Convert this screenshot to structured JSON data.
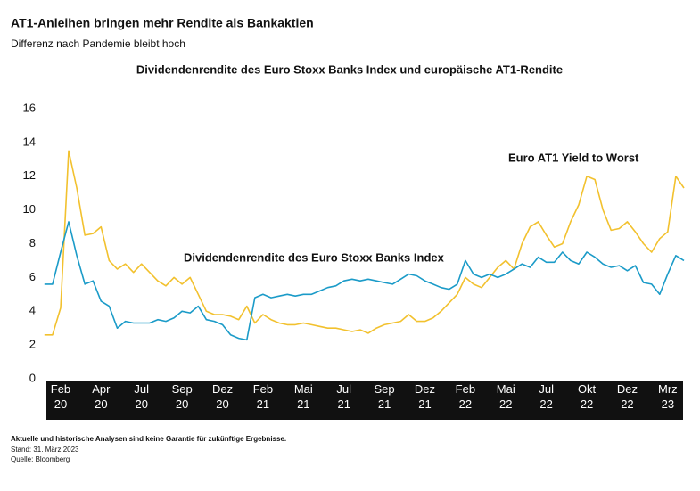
{
  "chart_data": {
    "type": "line",
    "title": "AT1-Anleihen bringen mehr Rendite als Bankaktien",
    "subtitle": "Differenz nach Pandemie bleibt hoch",
    "chart_title": "Dividendenrendite des Euro Stoxx Banks Index und europäische AT1-Rendite",
    "footnote": "Aktuelle und historische Analysen sind keine Garantie für zukünftige Ergebnisse.",
    "date_note": "Stand: 31. März 2023",
    "source": "Quelle: Bloomberg",
    "categories": [
      null,
      null,
      "Feb 20",
      null,
      null,
      null,
      null,
      "Apr 20",
      null,
      null,
      null,
      null,
      "Jul 20",
      null,
      null,
      null,
      null,
      "Sep 20",
      null,
      null,
      null,
      null,
      "Dez 20",
      null,
      null,
      null,
      null,
      "Feb 21",
      null,
      null,
      null,
      null,
      "Mai 21",
      null,
      null,
      null,
      null,
      "Jul 21",
      null,
      null,
      null,
      null,
      "Sep 21",
      null,
      null,
      null,
      null,
      "Dez 21",
      null,
      null,
      null,
      null,
      "Feb 22",
      null,
      null,
      null,
      null,
      "Mai 22",
      null,
      null,
      null,
      null,
      "Jul 22",
      null,
      null,
      null,
      null,
      "Okt 22",
      null,
      null,
      null,
      null,
      "Dez 22",
      null,
      null,
      null,
      null,
      "Mrz 23",
      null,
      null
    ],
    "series": [
      {
        "name": "Euro AT1 Yield to Worst",
        "color": "#f2c12e",
        "values": [
          2.6,
          2.6,
          4.2,
          13.5,
          11.3,
          8.5,
          8.6,
          9.0,
          7.0,
          6.5,
          6.8,
          6.3,
          6.8,
          6.3,
          5.8,
          5.5,
          6.0,
          5.6,
          6.0,
          5.0,
          4.0,
          3.8,
          3.8,
          3.7,
          3.5,
          4.3,
          3.3,
          3.8,
          3.5,
          3.3,
          3.2,
          3.2,
          3.3,
          3.2,
          3.1,
          3.0,
          3.0,
          2.9,
          2.8,
          2.9,
          2.7,
          3.0,
          3.2,
          3.3,
          3.4,
          3.8,
          3.4,
          3.4,
          3.6,
          4.0,
          4.5,
          5.0,
          6.0,
          5.6,
          5.4,
          6.0,
          6.6,
          7.0,
          6.5,
          8.0,
          9.0,
          9.3,
          8.5,
          7.8,
          8.0,
          9.3,
          10.3,
          12.0,
          11.8,
          10.0,
          8.8,
          8.9,
          9.3,
          8.7,
          8.0,
          7.5,
          8.3,
          8.7,
          12.0,
          11.3
        ]
      },
      {
        "name": "Dividendenrendite des Euro Stoxx Banks Index",
        "color": "#1b9bc8",
        "values": [
          5.6,
          5.6,
          7.5,
          9.3,
          7.3,
          5.6,
          5.8,
          4.6,
          4.3,
          3.0,
          3.4,
          3.3,
          3.3,
          3.3,
          3.5,
          3.4,
          3.6,
          4.0,
          3.9,
          4.3,
          3.5,
          3.4,
          3.2,
          2.6,
          2.4,
          2.3,
          4.8,
          5.0,
          4.8,
          4.9,
          5.0,
          4.9,
          5.0,
          5.0,
          5.2,
          5.4,
          5.5,
          5.8,
          5.9,
          5.8,
          5.9,
          5.8,
          5.7,
          5.6,
          5.9,
          6.2,
          6.1,
          5.8,
          5.6,
          5.4,
          5.3,
          5.6,
          7.0,
          6.2,
          6.0,
          6.2,
          6.0,
          6.2,
          6.5,
          6.8,
          6.6,
          7.2,
          6.9,
          6.9,
          7.5,
          7.0,
          6.8,
          7.5,
          7.2,
          6.8,
          6.6,
          6.7,
          6.4,
          6.7,
          5.7,
          5.6,
          5.0,
          6.2,
          7.3,
          7.0
        ]
      }
    ],
    "ylim": [
      0,
      16
    ],
    "yticks": [
      0,
      2,
      4,
      6,
      8,
      10,
      12,
      14,
      16
    ],
    "grid": false
  }
}
